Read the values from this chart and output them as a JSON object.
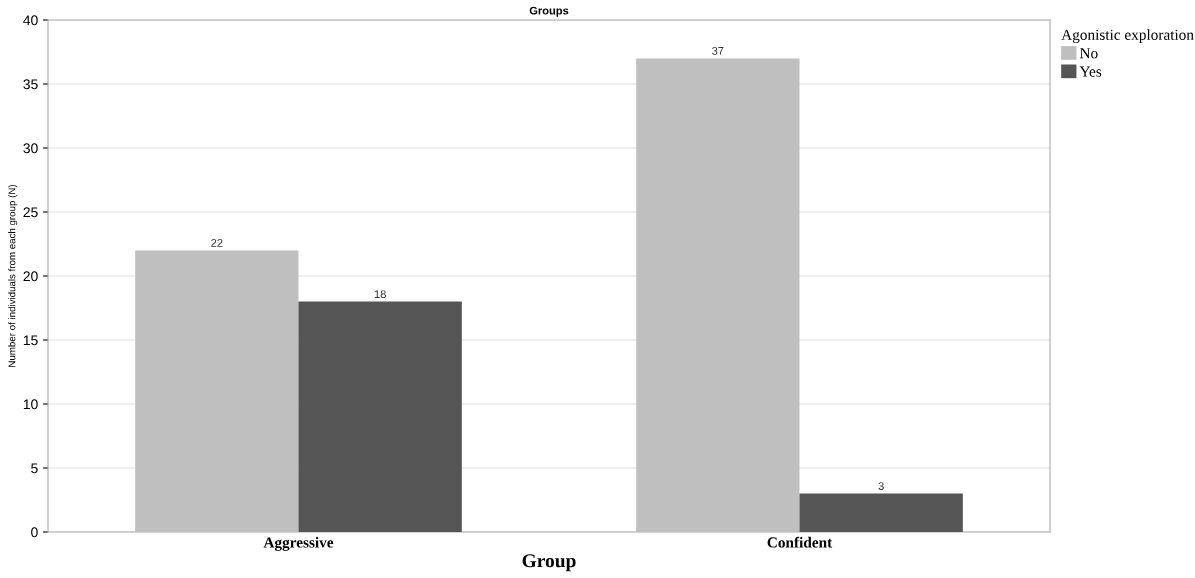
{
  "chart_data": {
    "type": "bar",
    "title": "Groups",
    "xlabel": "Group",
    "ylabel": "Number of individuals from each group (N)",
    "legend_title": "Agonistic exploration",
    "categories": [
      "Aggressive",
      "Confident"
    ],
    "series": [
      {
        "name": "No",
        "color": "#bfbfbf",
        "values": [
          22,
          37
        ]
      },
      {
        "name": "Yes",
        "color": "#555555",
        "values": [
          18,
          3
        ]
      }
    ],
    "ylim": [
      0,
      40
    ],
    "yticks": [
      0,
      5,
      10,
      15,
      20,
      25,
      30,
      35,
      40
    ],
    "grid": "y",
    "legend": "top right",
    "data_labels": true
  }
}
